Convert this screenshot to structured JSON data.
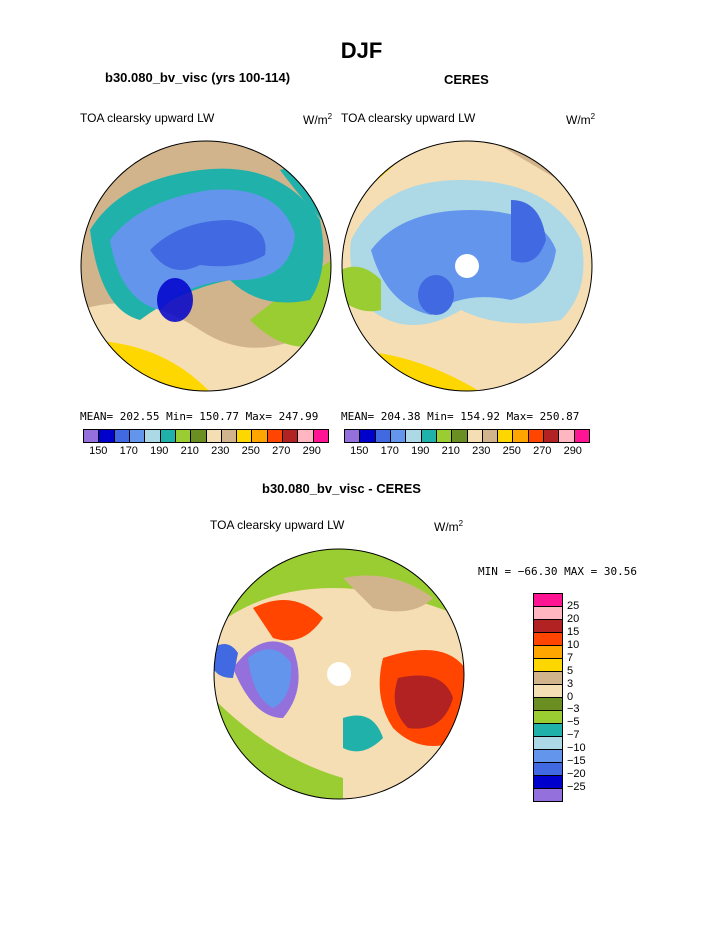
{
  "title": "DJF",
  "panels": [
    {
      "title": "b30.080_bv_visc (yrs 100-114)",
      "left_label": "TOA clearsky upward LW",
      "units": "W/m",
      "units_sup": "2",
      "stats": "MEAN= 202.55   Min= 150.77   Max= 247.99"
    },
    {
      "title": "CERES",
      "left_label": "TOA clearsky upward LW",
      "units": "W/m",
      "units_sup": "2",
      "stats": "MEAN= 204.38   Min= 154.92   Max= 250.87"
    },
    {
      "title": "b30.080_bv_visc - CERES",
      "left_label": "TOA clearsky upward LW",
      "units": "W/m",
      "units_sup": "2",
      "stats": "MIN = −66.30 MAX =  30.56"
    }
  ],
  "abs_colorbar": {
    "colors": [
      "#9370db",
      "#0000cd",
      "#4169e1",
      "#6495ed",
      "#add8e6",
      "#20b2aa",
      "#9acd32",
      "#6b8e23",
      "#f5deb3",
      "#d2b48c",
      "#ffd700",
      "#ffa500",
      "#ff4500",
      "#b22222",
      "#ffb6c1",
      "#ff1493"
    ],
    "ticks": [
      "150",
      "170",
      "190",
      "210",
      "230",
      "250",
      "270",
      "290"
    ]
  },
  "diff_colorbar": {
    "colors": [
      "#ff1493",
      "#ffb6c1",
      "#b22222",
      "#ff4500",
      "#ffa500",
      "#ffd700",
      "#d2b48c",
      "#f5deb3",
      "#6b8e23",
      "#9acd32",
      "#20b2aa",
      "#add8e6",
      "#6495ed",
      "#4169e1",
      "#0000cd",
      "#9370db"
    ],
    "ticks": [
      "25",
      "20",
      "15",
      "10",
      "7",
      "5",
      "3",
      "0",
      "−3",
      "−5",
      "−7",
      "−10",
      "−15",
      "−20",
      "−25"
    ]
  }
}
